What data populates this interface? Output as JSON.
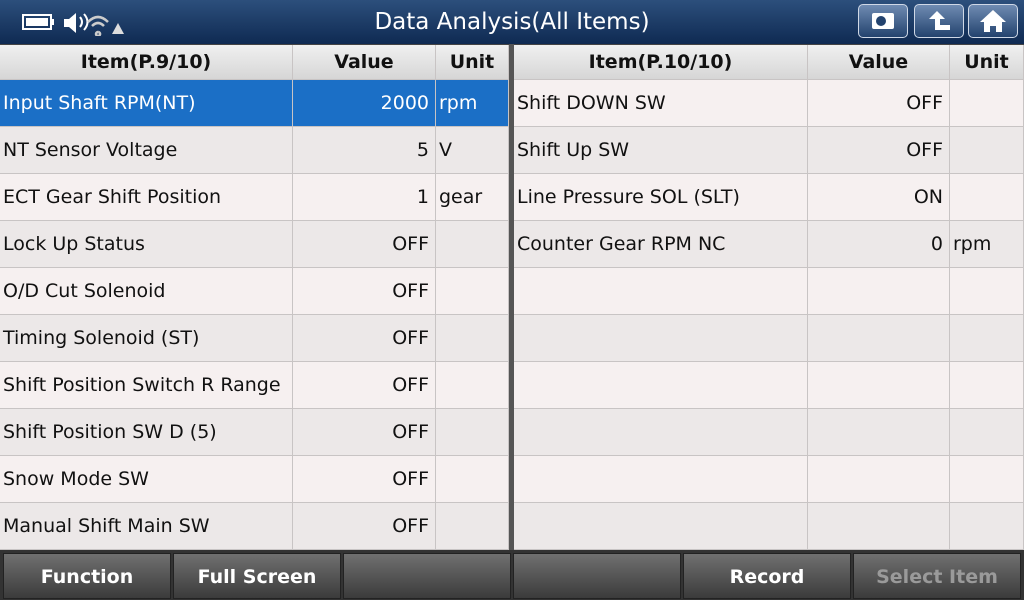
{
  "header": {
    "title": "Data Analysis(All Items)"
  },
  "left_table": {
    "columns": [
      "Item(P.9/10)",
      "Value",
      "Unit"
    ],
    "rows": [
      {
        "item": "Input Shaft RPM(NT)",
        "value": 2000,
        "unit": "rpm"
      },
      {
        "item": "NT Sensor Voltage",
        "value": 5,
        "unit": "V"
      },
      {
        "item": "ECT Gear Shift Position",
        "value": 1,
        "unit": "gear"
      },
      {
        "item": "Lock Up Status",
        "value": "OFF"
      },
      {
        "item": "O/D Cut Solenoid",
        "value": "OFF"
      },
      {
        "item": "Timing Solenoid (ST)",
        "value": "OFF"
      },
      {
        "item": "Shift Position Switch R Range",
        "value": "OFF"
      },
      {
        "item": "Shift Position SW D (5)",
        "value": "OFF"
      },
      {
        "item": "Snow Mode SW",
        "value": "OFF"
      },
      {
        "item": "Manual Shift Main SW",
        "value": "OFF"
      }
    ]
  },
  "right_table": {
    "columns": [
      "Item(P.10/10)",
      "Value",
      "Unit"
    ],
    "rows": [
      {
        "item": "Shift DOWN SW",
        "value": "OFF"
      },
      {
        "item": "Shift Up SW",
        "value": "OFF"
      },
      {
        "item": "Line Pressure SOL (SLT)",
        "value": "ON"
      },
      {
        "item": "Counter Gear RPM NC",
        "value": 0,
        "unit": "rpm"
      }
    ]
  },
  "buttons": [
    "Function",
    "Full Screen",
    null,
    null,
    "Record",
    "Select Item"
  ]
}
